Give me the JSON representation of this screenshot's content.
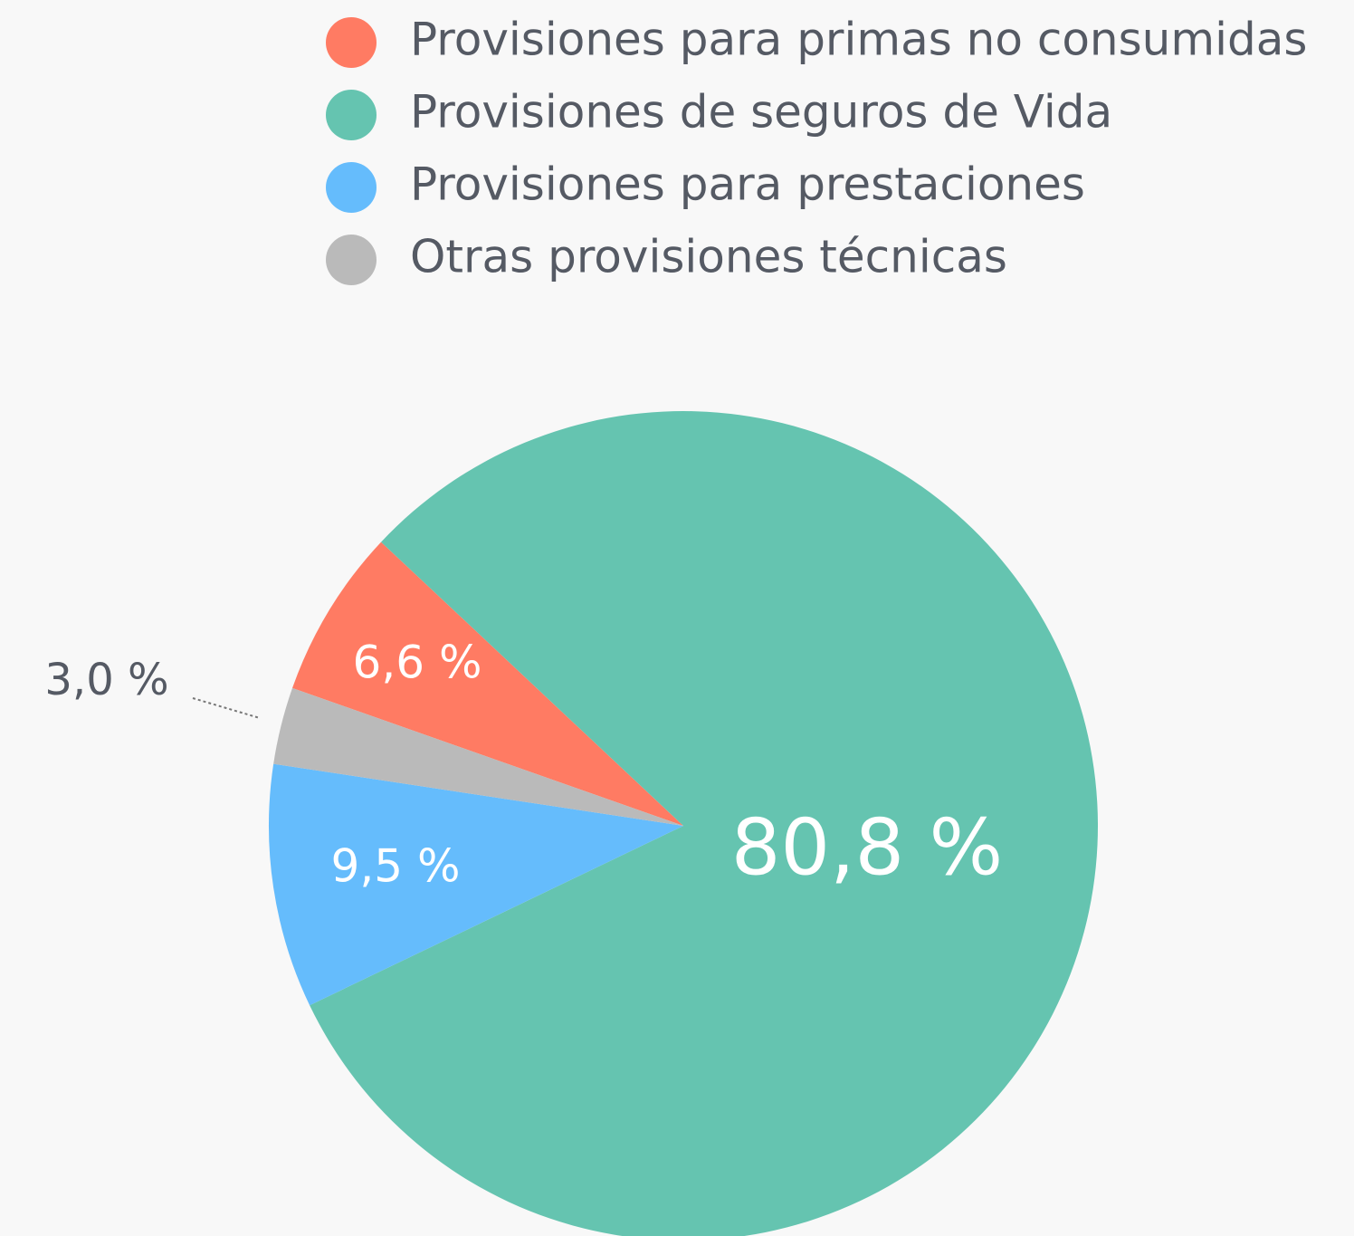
{
  "chart_data": {
    "type": "pie",
    "categories": [
      "Provisiones para primas no consumidas",
      "Provisiones de seguros de Vida",
      "Provisiones para prestaciones",
      "Otras provisiones técnicas"
    ],
    "values": [
      6.6,
      80.8,
      9.5,
      3.0
    ],
    "value_labels": [
      "6,6 %",
      "80,8 %",
      "9,5 %",
      "3,0 %"
    ],
    "colors": [
      "#ff7b63",
      "#65c4b0",
      "#65bcfc",
      "#bababa"
    ],
    "legend": "top"
  }
}
